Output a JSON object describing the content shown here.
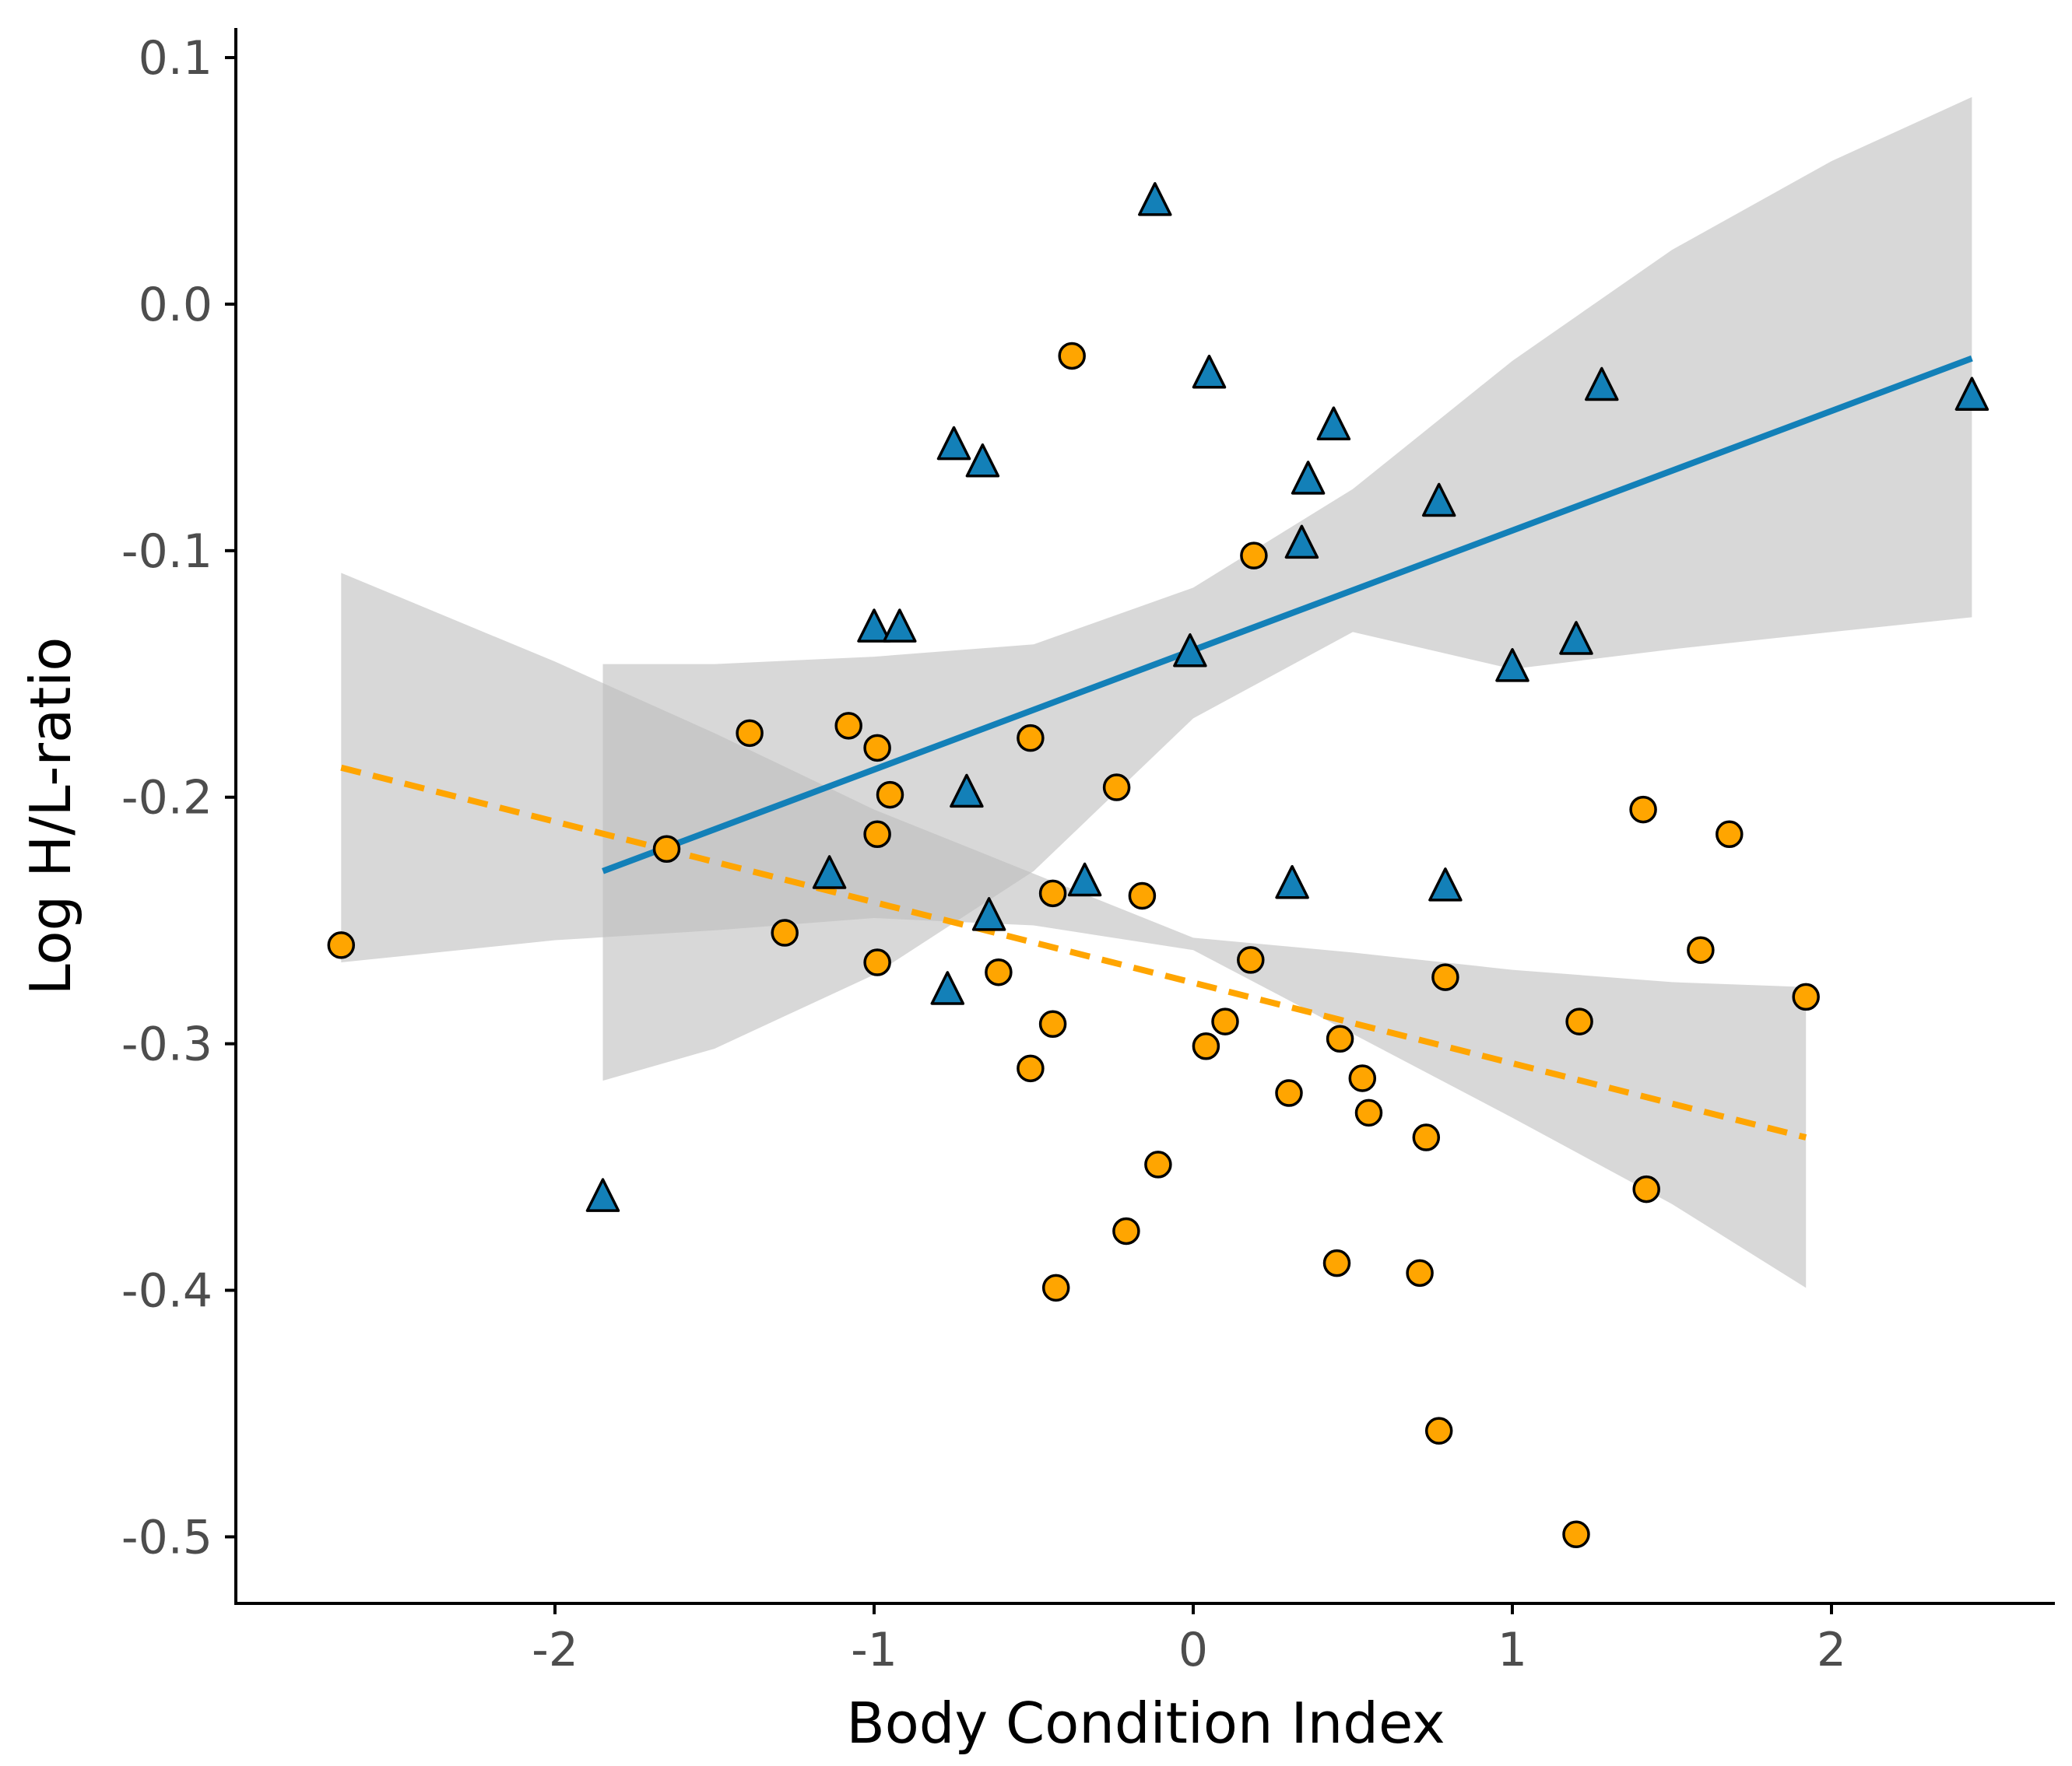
{
  "chart_data": {
    "type": "scatter",
    "title": "",
    "xlabel": "Body Condition Index",
    "ylabel": "Log H/L-ratio",
    "xlim": [
      -3.0,
      2.7
    ],
    "ylim": [
      -0.527,
      0.112
    ],
    "x_ticks": [
      -2,
      -1,
      0,
      1,
      2
    ],
    "y_ticks": [
      0.1,
      0.0,
      -0.1,
      -0.2,
      -0.3,
      -0.4,
      -0.5
    ],
    "x_tick_labels": [
      "-2",
      "-1",
      "0",
      "1",
      "2"
    ],
    "y_tick_labels": [
      "0.1",
      "0.0",
      "-0.1",
      "-0.2",
      "-0.3",
      "-0.4",
      "-0.5"
    ],
    "grid": false,
    "legend": "none",
    "colors": {
      "triangle_fill": "#1380B8",
      "circle_fill": "#FFA500",
      "blue_line": "#1380B8",
      "orange_line": "#FFA500",
      "ribbon": "#BEBEBE",
      "marker_stroke": "#000000",
      "axis": "#000000"
    },
    "series": [
      {
        "marker": "triangle",
        "color": "#1380B8",
        "points": [
          [
            -1.85,
            -0.362
          ],
          [
            -1.14,
            -0.231
          ],
          [
            -1.0,
            -0.131
          ],
          [
            -0.92,
            -0.131
          ],
          [
            -0.77,
            -0.278
          ],
          [
            -0.75,
            -0.057
          ],
          [
            -0.71,
            -0.198
          ],
          [
            -0.66,
            -0.064
          ],
          [
            -0.64,
            -0.248
          ],
          [
            -0.34,
            -0.234
          ],
          [
            -0.12,
            0.042
          ],
          [
            -0.01,
            -0.141
          ],
          [
            0.05,
            -0.028
          ],
          [
            0.31,
            -0.235
          ],
          [
            0.34,
            -0.097
          ],
          [
            0.36,
            -0.071
          ],
          [
            0.44,
            -0.049
          ],
          [
            0.77,
            -0.08
          ],
          [
            0.79,
            -0.236
          ],
          [
            1.0,
            -0.147
          ],
          [
            1.2,
            -0.136
          ],
          [
            1.28,
            -0.033
          ],
          [
            2.44,
            -0.037
          ]
        ],
        "fit": {
          "style": "solid",
          "x": [
            -1.85,
            2.44
          ],
          "y": [
            -0.23,
            -0.022
          ],
          "ci": [
            [
              -1.85,
              -0.146,
              -0.315
            ],
            [
              -1.5,
              -0.146,
              -0.302
            ],
            [
              -1.0,
              -0.143,
              -0.272
            ],
            [
              -0.5,
              -0.138,
              -0.23
            ],
            [
              0.0,
              -0.115,
              -0.168
            ],
            [
              0.5,
              -0.075,
              -0.133
            ],
            [
              1.0,
              -0.023,
              -0.148
            ],
            [
              1.5,
              0.022,
              -0.14
            ],
            [
              2.0,
              0.058,
              -0.133
            ],
            [
              2.44,
              0.084,
              -0.127
            ]
          ]
        }
      },
      {
        "marker": "circle",
        "color": "#FFA500",
        "points": [
          [
            -2.67,
            -0.26
          ],
          [
            -1.65,
            -0.221
          ],
          [
            -1.39,
            -0.174
          ],
          [
            -1.28,
            -0.255
          ],
          [
            -1.08,
            -0.171
          ],
          [
            -0.99,
            -0.18
          ],
          [
            -0.99,
            -0.215
          ],
          [
            -0.99,
            -0.267
          ],
          [
            -0.95,
            -0.199
          ],
          [
            -0.61,
            -0.271
          ],
          [
            -0.51,
            -0.176
          ],
          [
            -0.51,
            -0.31
          ],
          [
            -0.44,
            -0.239
          ],
          [
            -0.44,
            -0.292
          ],
          [
            -0.43,
            -0.399
          ],
          [
            -0.38,
            -0.021
          ],
          [
            -0.24,
            -0.196
          ],
          [
            -0.21,
            -0.376
          ],
          [
            -0.16,
            -0.24
          ],
          [
            -0.11,
            -0.349
          ],
          [
            0.04,
            -0.301
          ],
          [
            0.1,
            -0.291
          ],
          [
            0.18,
            -0.266
          ],
          [
            0.19,
            -0.102
          ],
          [
            0.3,
            -0.32
          ],
          [
            0.45,
            -0.389
          ],
          [
            0.46,
            -0.298
          ],
          [
            0.53,
            -0.314
          ],
          [
            0.55,
            -0.328
          ],
          [
            0.71,
            -0.393
          ],
          [
            0.73,
            -0.338
          ],
          [
            0.77,
            -0.457
          ],
          [
            0.79,
            -0.273
          ],
          [
            1.2,
            -0.499
          ],
          [
            1.21,
            -0.291
          ],
          [
            1.41,
            -0.205
          ],
          [
            1.42,
            -0.359
          ],
          [
            1.59,
            -0.262
          ],
          [
            1.68,
            -0.215
          ],
          [
            1.92,
            -0.281
          ]
        ],
        "fit": {
          "style": "dashed",
          "x": [
            -2.67,
            1.92
          ],
          "y": [
            -0.188,
            -0.338
          ],
          "ci": [
            [
              -2.67,
              -0.109,
              -0.267
            ],
            [
              -2.0,
              -0.145,
              -0.258
            ],
            [
              -1.5,
              -0.174,
              -0.254
            ],
            [
              -1.0,
              -0.205,
              -0.249
            ],
            [
              -0.5,
              -0.231,
              -0.252
            ],
            [
              0.0,
              -0.257,
              -0.262
            ],
            [
              0.5,
              -0.263,
              -0.296
            ],
            [
              1.0,
              -0.27,
              -0.33
            ],
            [
              1.5,
              -0.275,
              -0.365
            ],
            [
              1.92,
              -0.277,
              -0.399
            ]
          ]
        }
      }
    ]
  }
}
